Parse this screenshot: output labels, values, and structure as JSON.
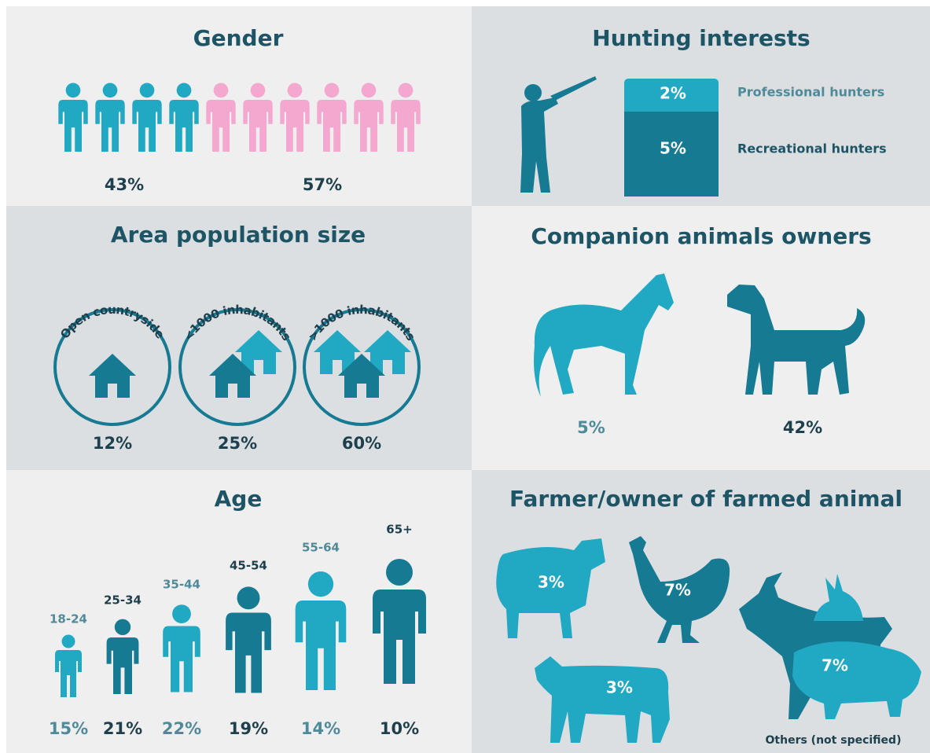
{
  "gender": {
    "title": "Gender",
    "values": [
      "43%",
      "57%"
    ]
  },
  "hunting": {
    "title": "Hunting interests",
    "items": [
      {
        "value": "2%",
        "label": "Professional hunters"
      },
      {
        "value": "5%",
        "label": "Recreational hunters"
      }
    ]
  },
  "area": {
    "title": "Area population size",
    "items": [
      {
        "label": "Open countryside",
        "value": "12%"
      },
      {
        "label": "<1000 inhabitants",
        "value": "25%"
      },
      {
        "label": ">1000 inhabitants",
        "value": "60%"
      }
    ]
  },
  "companion": {
    "title": "Companion animals owners",
    "values": [
      "5%",
      "42%"
    ]
  },
  "age": {
    "title": "Age",
    "items": [
      {
        "label": "18-24",
        "value": "15%"
      },
      {
        "label": "25-34",
        "value": "21%"
      },
      {
        "label": "35-44",
        "value": "22%"
      },
      {
        "label": "45-54",
        "value": "19%"
      },
      {
        "label": "55-64",
        "value": "14%"
      },
      {
        "label": "65+",
        "value": "10%"
      }
    ]
  },
  "farmed": {
    "title": "Farmer/owner of farmed animal",
    "values": [
      "3%",
      "7%",
      "3%",
      "7%"
    ],
    "note": "Others (not specified)"
  }
}
